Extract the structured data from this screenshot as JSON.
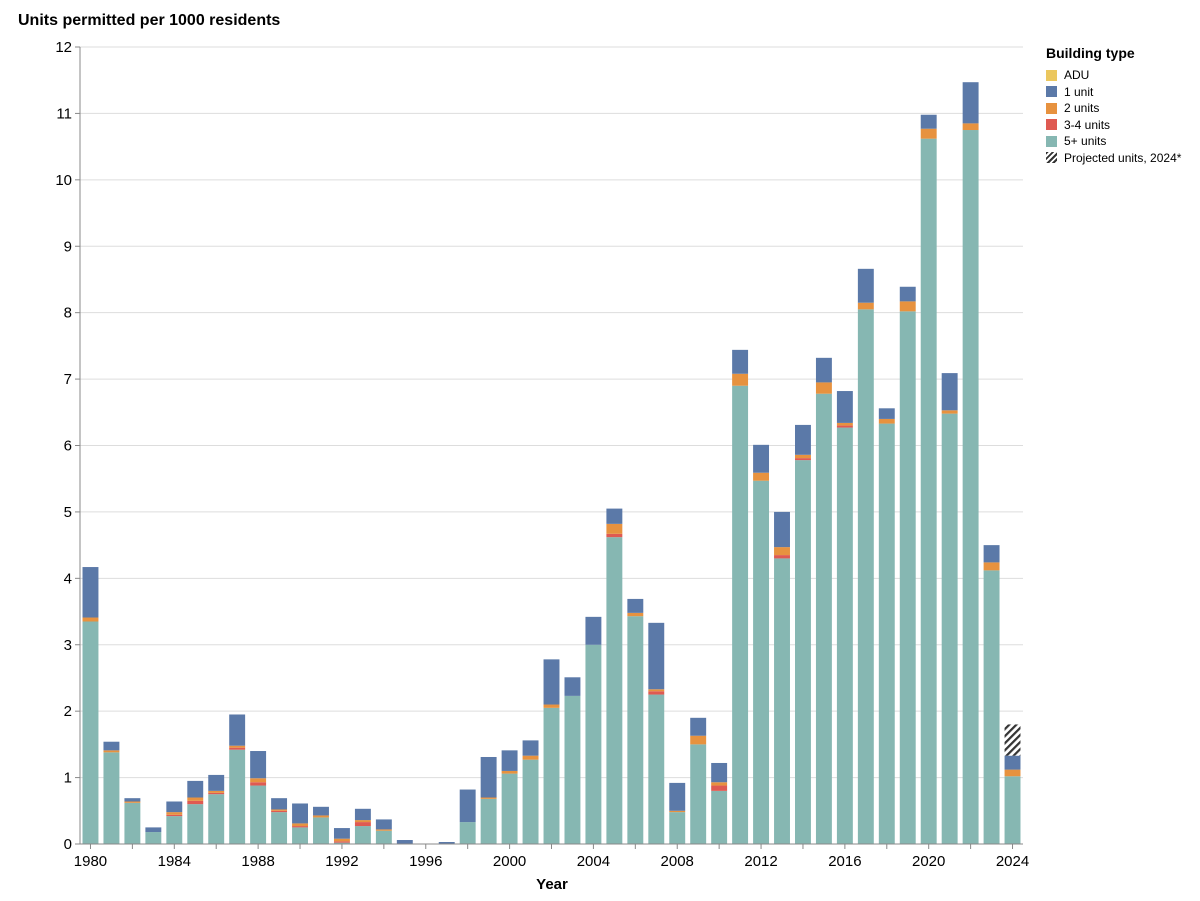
{
  "chart_data": {
    "type": "bar",
    "stacked": true,
    "title": "Units permitted per 1000 residents",
    "xlabel": "Year",
    "ylabel": "",
    "ylim": [
      0,
      12
    ],
    "yticks": [
      0,
      1,
      2,
      3,
      4,
      5,
      6,
      7,
      8,
      9,
      10,
      11,
      12
    ],
    "xticks": [
      1980,
      1984,
      1988,
      1992,
      1996,
      2000,
      2004,
      2008,
      2012,
      2016,
      2020,
      2024
    ],
    "grid": true,
    "legend_position": "right",
    "legend_title": "Building type",
    "categories": [
      1980,
      1981,
      1982,
      1983,
      1984,
      1985,
      1986,
      1987,
      1988,
      1989,
      1990,
      1991,
      1992,
      1993,
      1994,
      1995,
      1996,
      1997,
      1998,
      1999,
      2000,
      2001,
      2002,
      2003,
      2004,
      2005,
      2006,
      2007,
      2008,
      2009,
      2010,
      2011,
      2012,
      2013,
      2014,
      2015,
      2016,
      2017,
      2018,
      2019,
      2020,
      2021,
      2022,
      2023,
      2024
    ],
    "series": [
      {
        "name": "5+ units",
        "color": "#86b7b2",
        "values": [
          3.35,
          1.38,
          0.62,
          0.18,
          0.42,
          0.6,
          0.75,
          1.42,
          0.88,
          0.48,
          0.25,
          0.4,
          0.02,
          0.27,
          0.2,
          0.0,
          0.0,
          0.0,
          0.33,
          0.68,
          1.06,
          1.27,
          2.05,
          2.23,
          3.0,
          4.62,
          3.43,
          2.25,
          0.48,
          1.5,
          0.8,
          6.9,
          5.47,
          4.3,
          5.78,
          6.78,
          6.27,
          8.05,
          6.33,
          8.02,
          10.62,
          6.48,
          10.75,
          4.12,
          1.02
        ]
      },
      {
        "name": "3-4 units",
        "color": "#df5a52",
        "values": [
          0.0,
          0.0,
          0.0,
          0.0,
          0.02,
          0.05,
          0.02,
          0.03,
          0.05,
          0.02,
          0.02,
          0.0,
          0.02,
          0.06,
          0.0,
          0.0,
          0.0,
          0.0,
          0.0,
          0.0,
          0.0,
          0.0,
          0.0,
          0.0,
          0.0,
          0.05,
          0.0,
          0.05,
          0.0,
          0.0,
          0.08,
          0.0,
          0.0,
          0.05,
          0.03,
          0.0,
          0.03,
          0.0,
          0.0,
          0.0,
          0.0,
          0.0,
          0.0,
          0.0,
          0.0
        ]
      },
      {
        "name": "2 units",
        "color": "#e7923f",
        "values": [
          0.06,
          0.03,
          0.02,
          0.0,
          0.04,
          0.05,
          0.03,
          0.03,
          0.06,
          0.02,
          0.04,
          0.03,
          0.04,
          0.03,
          0.02,
          0.0,
          0.0,
          0.0,
          0.0,
          0.02,
          0.04,
          0.06,
          0.05,
          0.0,
          0.0,
          0.15,
          0.05,
          0.03,
          0.02,
          0.13,
          0.05,
          0.18,
          0.12,
          0.12,
          0.05,
          0.17,
          0.04,
          0.1,
          0.07,
          0.15,
          0.15,
          0.05,
          0.1,
          0.12,
          0.1
        ]
      },
      {
        "name": "1 unit",
        "color": "#5b79a8",
        "values": [
          0.76,
          0.13,
          0.05,
          0.07,
          0.16,
          0.25,
          0.24,
          0.47,
          0.41,
          0.17,
          0.3,
          0.13,
          0.16,
          0.17,
          0.15,
          0.06,
          0.0,
          0.03,
          0.49,
          0.61,
          0.31,
          0.23,
          0.68,
          0.28,
          0.42,
          0.23,
          0.21,
          1.0,
          0.42,
          0.27,
          0.29,
          0.36,
          0.42,
          0.53,
          0.45,
          0.37,
          0.48,
          0.51,
          0.16,
          0.22,
          0.21,
          0.56,
          0.62,
          0.26,
          0.21
        ]
      },
      {
        "name": "ADU",
        "color": "#ebc75e",
        "values": [
          0,
          0,
          0,
          0,
          0,
          0,
          0,
          0,
          0,
          0,
          0,
          0,
          0,
          0,
          0,
          0,
          0,
          0,
          0,
          0,
          0,
          0,
          0,
          0,
          0,
          0,
          0,
          0,
          0,
          0,
          0,
          0,
          0,
          0,
          0,
          0,
          0,
          0,
          0,
          0,
          0,
          0,
          0,
          0,
          0
        ]
      }
    ],
    "projection": {
      "label": "Projected units, 2024*",
      "category": 2024,
      "value": 1.8
    }
  },
  "legend": {
    "title": "Building type",
    "items": [
      {
        "label": "ADU",
        "color": "#ebc75e"
      },
      {
        "label": "1 unit",
        "color": "#5b79a8"
      },
      {
        "label": "2 units",
        "color": "#e7923f"
      },
      {
        "label": "3-4 units",
        "color": "#df5a52"
      },
      {
        "label": "5+ units",
        "color": "#86b7b2"
      },
      {
        "label": "Projected units, 2024*",
        "pattern": "hatch"
      }
    ]
  }
}
